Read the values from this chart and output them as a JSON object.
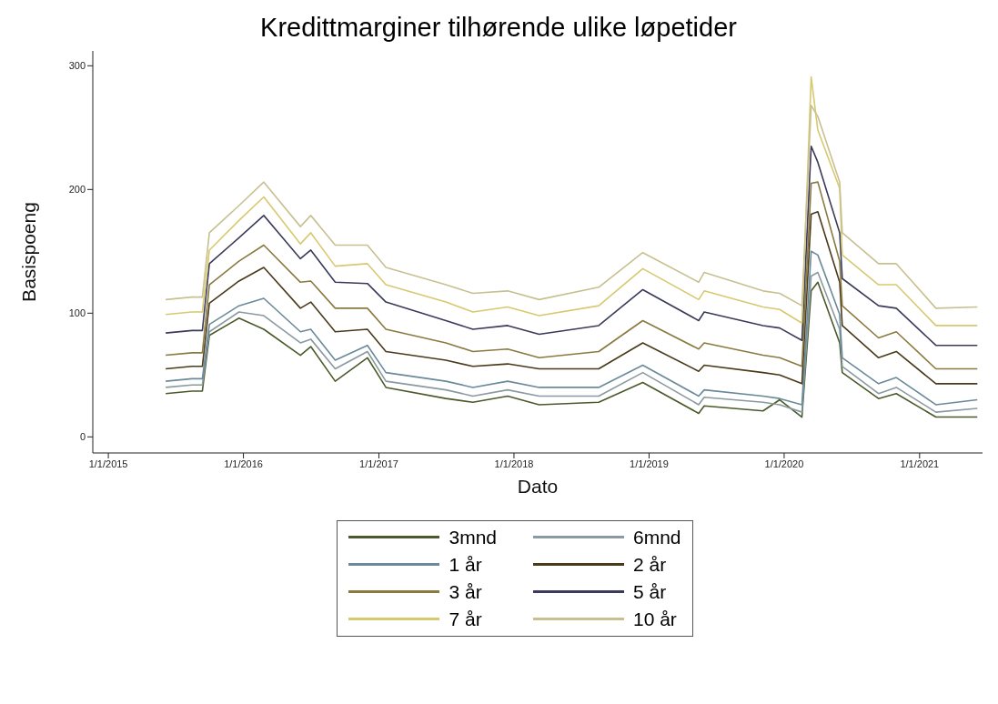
{
  "chart_data": {
    "type": "line",
    "title": "Kredittmarginer tilhørende ulike løpetider",
    "xlabel": "Dato",
    "ylabel": "Basispoeng",
    "x": [
      "2015-06-05",
      "2015-08-15",
      "2015-09-12",
      "2015-10-01",
      "2015-12-20",
      "2016-02-25",
      "2016-06-03",
      "2016-07-01",
      "2016-09-05",
      "2016-12-01",
      "2017-01-20",
      "2017-07-01",
      "2017-09-12",
      "2017-12-15",
      "2018-03-10",
      "2018-08-18",
      "2018-12-15",
      "2019-05-15",
      "2019-05-30",
      "2019-11-05",
      "2019-12-20",
      "2020-02-18",
      "2020-03-14",
      "2020-04-01",
      "2020-05-30",
      "2020-06-06",
      "2020-09-12",
      "2020-10-30",
      "2021-02-14",
      "2021-06-06"
    ],
    "series": [
      {
        "name": "3mnd",
        "color": "#4a5a2a",
        "values": [
          35,
          37,
          37,
          82,
          96,
          87,
          66,
          73,
          45,
          64,
          40,
          31,
          28,
          33,
          26,
          28,
          44,
          19,
          25,
          21,
          30,
          16,
          118,
          125,
          76,
          52,
          31,
          35,
          16,
          16
        ]
      },
      {
        "name": "6mnd",
        "color": "#8a9aa0",
        "values": [
          40,
          42,
          42,
          85,
          101,
          98,
          76,
          79,
          55,
          69,
          45,
          38,
          33,
          38,
          33,
          33,
          52,
          26,
          32,
          28,
          26,
          20,
          130,
          133,
          87,
          57,
          35,
          40,
          20,
          23
        ]
      },
      {
        "name": "1 år",
        "color": "#6a8a9a",
        "values": [
          45,
          47,
          47,
          91,
          106,
          112,
          85,
          87,
          62,
          74,
          52,
          45,
          40,
          45,
          40,
          40,
          58,
          33,
          38,
          33,
          31,
          26,
          150,
          147,
          99,
          64,
          43,
          48,
          26,
          30
        ]
      },
      {
        "name": "2 år",
        "color": "#4a3a1a",
        "values": [
          55,
          57,
          57,
          108,
          126,
          137,
          104,
          109,
          85,
          87,
          69,
          62,
          57,
          59,
          55,
          55,
          76,
          53,
          58,
          52,
          50,
          43,
          180,
          182,
          125,
          90,
          64,
          69,
          43,
          43
        ]
      },
      {
        "name": "3 år",
        "color": "#8a7a40",
        "values": [
          66,
          68,
          68,
          123,
          142,
          155,
          125,
          126,
          104,
          104,
          87,
          76,
          69,
          71,
          64,
          69,
          94,
          71,
          76,
          66,
          64,
          57,
          205,
          206,
          142,
          106,
          80,
          85,
          55,
          55
        ]
      },
      {
        "name": "5 år",
        "color": "#3a3a5a",
        "values": [
          84,
          86,
          86,
          140,
          161,
          179,
          144,
          151,
          125,
          124,
          109,
          94,
          87,
          90,
          83,
          90,
          119,
          94,
          101,
          90,
          88,
          78,
          235,
          222,
          165,
          128,
          106,
          104,
          74,
          74
        ]
      },
      {
        "name": "7 år",
        "color": "#d8c870",
        "values": [
          99,
          101,
          101,
          151,
          175,
          194,
          156,
          165,
          138,
          140,
          123,
          109,
          101,
          105,
          98,
          106,
          136,
          111,
          118,
          105,
          103,
          92,
          291,
          248,
          201,
          147,
          123,
          123,
          90,
          90
        ]
      },
      {
        "name": "10 år",
        "color": "#c8c090",
        "values": [
          111,
          113,
          113,
          165,
          187,
          206,
          170,
          179,
          155,
          155,
          137,
          123,
          116,
          118,
          111,
          121,
          149,
          125,
          133,
          118,
          116,
          106,
          268,
          259,
          206,
          165,
          140,
          140,
          104,
          105
        ]
      }
    ],
    "xlim": [
      "2014-11-20",
      "2021-06-20"
    ],
    "xticks": [
      {
        "value": "2015-01-01",
        "label": "1/1/2015"
      },
      {
        "value": "2016-01-01",
        "label": "1/1/2016"
      },
      {
        "value": "2017-01-01",
        "label": "1/1/2017"
      },
      {
        "value": "2018-01-01",
        "label": "1/1/2018"
      },
      {
        "value": "2019-01-01",
        "label": "1/1/2019"
      },
      {
        "value": "2020-01-01",
        "label": "1/1/2020"
      },
      {
        "value": "2021-01-01",
        "label": "1/1/2021"
      }
    ],
    "ylim": [
      -13,
      312
    ],
    "yticks": [
      0,
      100,
      200,
      300
    ],
    "grid": false,
    "legend": "bottom",
    "marker": "none",
    "line_style": "solid"
  }
}
